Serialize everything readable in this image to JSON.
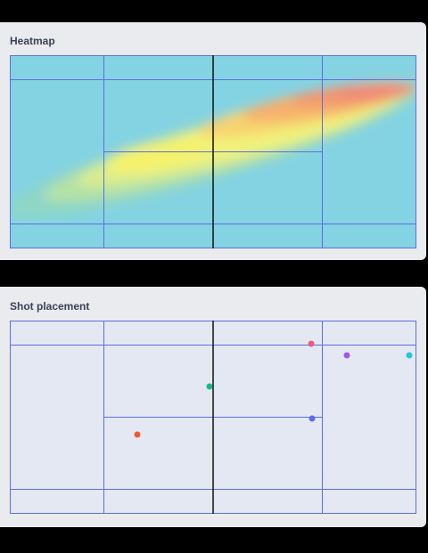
{
  "heatmap_card": {
    "title": "Heatmap"
  },
  "shot_card": {
    "title": "Shot placement"
  },
  "colors": {
    "court_background_heatmap": "#84d3e3",
    "court_background_shots": "#e4e8f2",
    "court_lines": "#5b6fe0",
    "net": "#111111",
    "heat_low": "#84d3e3",
    "heat_mid": "#f2f27a",
    "heat_high": "#f08a78"
  },
  "shots": [
    {
      "color": "#ec5a7e"
    },
    {
      "color": "#a356e6"
    },
    {
      "color": "#1fc8dc"
    },
    {
      "color": "#17b88a"
    },
    {
      "color": "#5a6ee6"
    },
    {
      "color": "#ef5a2c"
    }
  ]
}
